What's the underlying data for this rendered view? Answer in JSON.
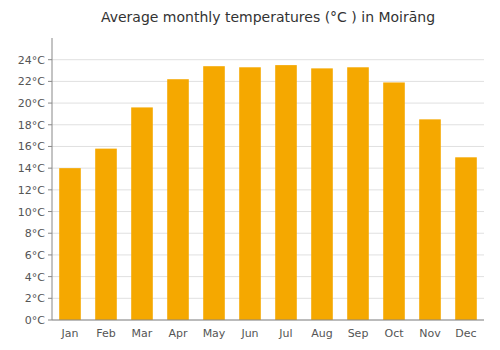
{
  "chart_data": {
    "type": "bar",
    "title": "Average monthly temperatures (°C ) in Moirāng",
    "categories": [
      "Jan",
      "Feb",
      "Mar",
      "Apr",
      "May",
      "Jun",
      "Jul",
      "Aug",
      "Sep",
      "Oct",
      "Nov",
      "Dec"
    ],
    "values": [
      14.0,
      15.8,
      19.6,
      22.2,
      23.4,
      23.3,
      23.5,
      23.2,
      23.3,
      21.9,
      18.5,
      15.0
    ],
    "color": "#F5A800",
    "ylim": [
      0,
      26
    ],
    "yticks": [
      {
        "value": 0,
        "label": "0°C"
      },
      {
        "value": 2,
        "label": "2°C"
      },
      {
        "value": 4,
        "label": "4°C"
      },
      {
        "value": 6,
        "label": "6°C"
      },
      {
        "value": 8,
        "label": "8°C"
      },
      {
        "value": 10,
        "label": "10°C"
      },
      {
        "value": 12,
        "label": "12°C"
      },
      {
        "value": 14,
        "label": "14°C"
      },
      {
        "value": 16,
        "label": "16°C"
      },
      {
        "value": 18,
        "label": "18°C"
      },
      {
        "value": 20,
        "label": "20°C"
      },
      {
        "value": 22,
        "label": "22°C"
      },
      {
        "value": 24,
        "label": "24°C"
      }
    ],
    "grid": true
  }
}
